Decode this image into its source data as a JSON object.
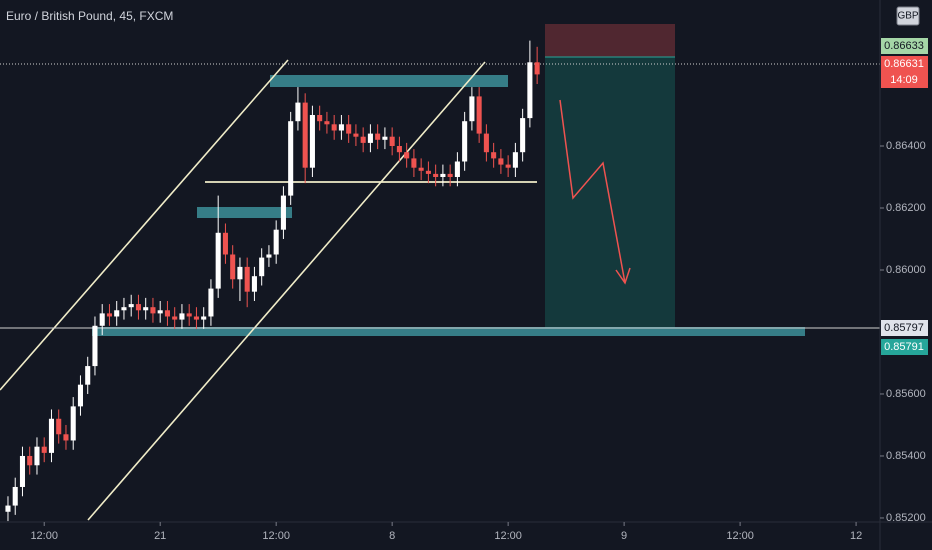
{
  "chart_data": {
    "type": "candlestick",
    "title": "Euro / British Pound, 45, FXCM",
    "up_color": "#ffffff",
    "down_color": "#ef5350",
    "open": [
      0.8522,
      0.8524,
      0.853,
      0.854,
      0.8537,
      0.8543,
      0.8541,
      0.8552,
      0.8547,
      0.8545,
      0.8556,
      0.8563,
      0.8569,
      0.8582,
      0.8586,
      0.8585,
      0.8587,
      0.8588,
      0.8589,
      0.8587,
      0.8588,
      0.8586,
      0.8587,
      0.8585,
      0.8584,
      0.8586,
      0.8585,
      0.8584,
      0.8585,
      0.8594,
      0.8612,
      0.8605,
      0.8597,
      0.8601,
      0.8593,
      0.8598,
      0.8604,
      0.8605,
      0.8613,
      0.8624,
      0.8648,
      0.8654,
      0.8633,
      0.865,
      0.8648,
      0.8647,
      0.8645,
      0.8647,
      0.8644,
      0.8643,
      0.8641,
      0.8644,
      0.8642,
      0.8643,
      0.864,
      0.8638,
      0.8636,
      0.8633,
      0.8632,
      0.8631,
      0.863,
      0.8631,
      0.863,
      0.8635,
      0.8648,
      0.8656,
      0.8644,
      0.8638,
      0.8636,
      0.8634,
      0.8633,
      0.8638,
      0.8649,
      0.8667
    ],
    "high": [
      0.8527,
      0.8533,
      0.8543,
      0.8543,
      0.8546,
      0.8546,
      0.8555,
      0.8555,
      0.855,
      0.8559,
      0.8566,
      0.8572,
      0.8585,
      0.8589,
      0.8589,
      0.859,
      0.8591,
      0.8592,
      0.8592,
      0.8591,
      0.8591,
      0.859,
      0.859,
      0.8588,
      0.8589,
      0.8589,
      0.8588,
      0.8588,
      0.8597,
      0.8624,
      0.8615,
      0.8608,
      0.8604,
      0.8604,
      0.8601,
      0.8607,
      0.8608,
      0.8616,
      0.8627,
      0.8651,
      0.8659,
      0.8657,
      0.8653,
      0.8653,
      0.8651,
      0.865,
      0.865,
      0.865,
      0.8647,
      0.8646,
      0.8647,
      0.8647,
      0.8646,
      0.8646,
      0.8643,
      0.8641,
      0.8639,
      0.8636,
      0.8635,
      0.8634,
      0.8634,
      0.8634,
      0.8638,
      0.8651,
      0.8659,
      0.8659,
      0.8647,
      0.8641,
      0.8639,
      0.8637,
      0.8641,
      0.8652,
      0.8674,
      0.8672
    ],
    "low": [
      0.8519,
      0.8521,
      0.8527,
      0.8534,
      0.8534,
      0.8538,
      0.8538,
      0.8544,
      0.8542,
      0.8542,
      0.8553,
      0.856,
      0.8566,
      0.8579,
      0.8582,
      0.8582,
      0.8584,
      0.8585,
      0.8584,
      0.8584,
      0.8583,
      0.8583,
      0.8582,
      0.8581,
      0.8581,
      0.8582,
      0.8581,
      0.8581,
      0.8582,
      0.8591,
      0.8602,
      0.8594,
      0.859,
      0.8588,
      0.859,
      0.8595,
      0.8601,
      0.8602,
      0.861,
      0.8621,
      0.8645,
      0.8628,
      0.863,
      0.8645,
      0.8644,
      0.8642,
      0.8642,
      0.8641,
      0.864,
      0.8638,
      0.8638,
      0.8639,
      0.8639,
      0.8637,
      0.8635,
      0.8633,
      0.863,
      0.8629,
      0.8628,
      0.8627,
      0.8627,
      0.8627,
      0.8627,
      0.8632,
      0.8645,
      0.8641,
      0.8635,
      0.8633,
      0.8631,
      0.863,
      0.863,
      0.8635,
      0.8646,
      0.866
    ],
    "close": [
      0.8524,
      0.853,
      0.854,
      0.8537,
      0.8543,
      0.8541,
      0.8552,
      0.8547,
      0.8545,
      0.8556,
      0.8563,
      0.8569,
      0.8582,
      0.8586,
      0.8585,
      0.8587,
      0.8588,
      0.8589,
      0.8587,
      0.8588,
      0.8586,
      0.8587,
      0.8585,
      0.8584,
      0.8586,
      0.8585,
      0.8584,
      0.8585,
      0.8594,
      0.8612,
      0.8605,
      0.8597,
      0.8601,
      0.8593,
      0.8598,
      0.8604,
      0.8605,
      0.8613,
      0.8624,
      0.8648,
      0.8654,
      0.8633,
      0.865,
      0.8648,
      0.8647,
      0.8645,
      0.8647,
      0.8644,
      0.8643,
      0.8641,
      0.8644,
      0.8642,
      0.8643,
      0.864,
      0.8638,
      0.8636,
      0.8633,
      0.8632,
      0.8631,
      0.863,
      0.8631,
      0.863,
      0.8635,
      0.8648,
      0.8656,
      0.8644,
      0.8638,
      0.8636,
      0.8634,
      0.8633,
      0.8638,
      0.8649,
      0.8667,
      0.86631
    ],
    "xlim": [
      -1.1,
      120.3
    ],
    "xticks": [
      {
        "value": 5,
        "label": "12:00"
      },
      21,
      {
        "value": 37,
        "label": "12:00"
      },
      8,
      {
        "value": 69,
        "label": "12:00"
      },
      9,
      {
        "value": 101,
        "label": "12:00"
      },
      12
    ],
    "xtick_pos": [
      5,
      21,
      37,
      53,
      69,
      85,
      101,
      117
    ],
    "ylim": [
      0.85187,
      0.86871
    ],
    "yticks": [
      {
        "value": 0.852,
        "label": "0.85200"
      },
      {
        "value": 0.854,
        "label": "0.85400"
      },
      {
        "value": 0.856,
        "label": "0.85600"
      },
      {
        "value": 0.86,
        "label": "0.86000"
      },
      {
        "value": 0.862,
        "label": "0.86200"
      },
      {
        "value": 0.864,
        "label": "0.86400"
      }
    ],
    "currency": "GBP",
    "countdown": "14:09",
    "price_tags": [
      "0.86633",
      "0.86631",
      "0.85797",
      "0.85791"
    ]
  }
}
